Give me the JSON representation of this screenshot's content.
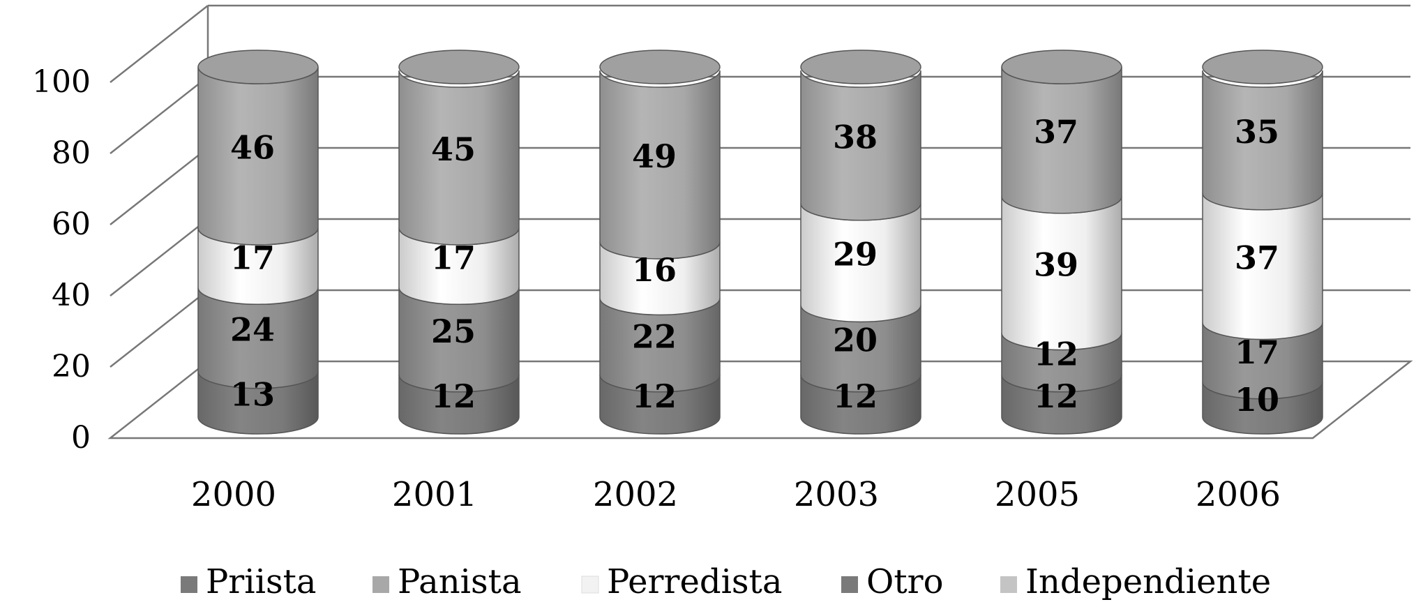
{
  "chart_data": {
    "type": "bar",
    "stacked": true,
    "style": "3d-cylinder",
    "categories": [
      "2000",
      "2001",
      "2002",
      "2003",
      "2005",
      "2006"
    ],
    "series": [
      {
        "name": "Otro",
        "values": [
          13,
          12,
          12,
          12,
          12,
          10
        ],
        "color": "#7a7a7a"
      },
      {
        "name": "Priista",
        "values": [
          24,
          25,
          22,
          20,
          12,
          17
        ],
        "color": "#8e8e8e"
      },
      {
        "name": "Perredista",
        "values": [
          17,
          17,
          16,
          29,
          39,
          37
        ],
        "color": "#efefef"
      },
      {
        "name": "Panista",
        "values": [
          46,
          45,
          49,
          38,
          37,
          35
        ],
        "color": "#a8a8a8"
      }
    ],
    "legend": [
      {
        "name": "Priista",
        "color": "#7a7a7a"
      },
      {
        "name": "Panista",
        "color": "#a8a8a8"
      },
      {
        "name": "Perredista",
        "color": "#f2f2f2"
      },
      {
        "name": "Otro",
        "color": "#7a7a7a"
      },
      {
        "name": "Independiente",
        "color": "#c4c4c4"
      }
    ],
    "legend_position": "bottom",
    "ylim": [
      0,
      100
    ],
    "yticks": [
      "0",
      "20",
      "40",
      "60",
      "80",
      "100"
    ],
    "grid": true,
    "title": "",
    "xlabel": "",
    "ylabel": ""
  }
}
